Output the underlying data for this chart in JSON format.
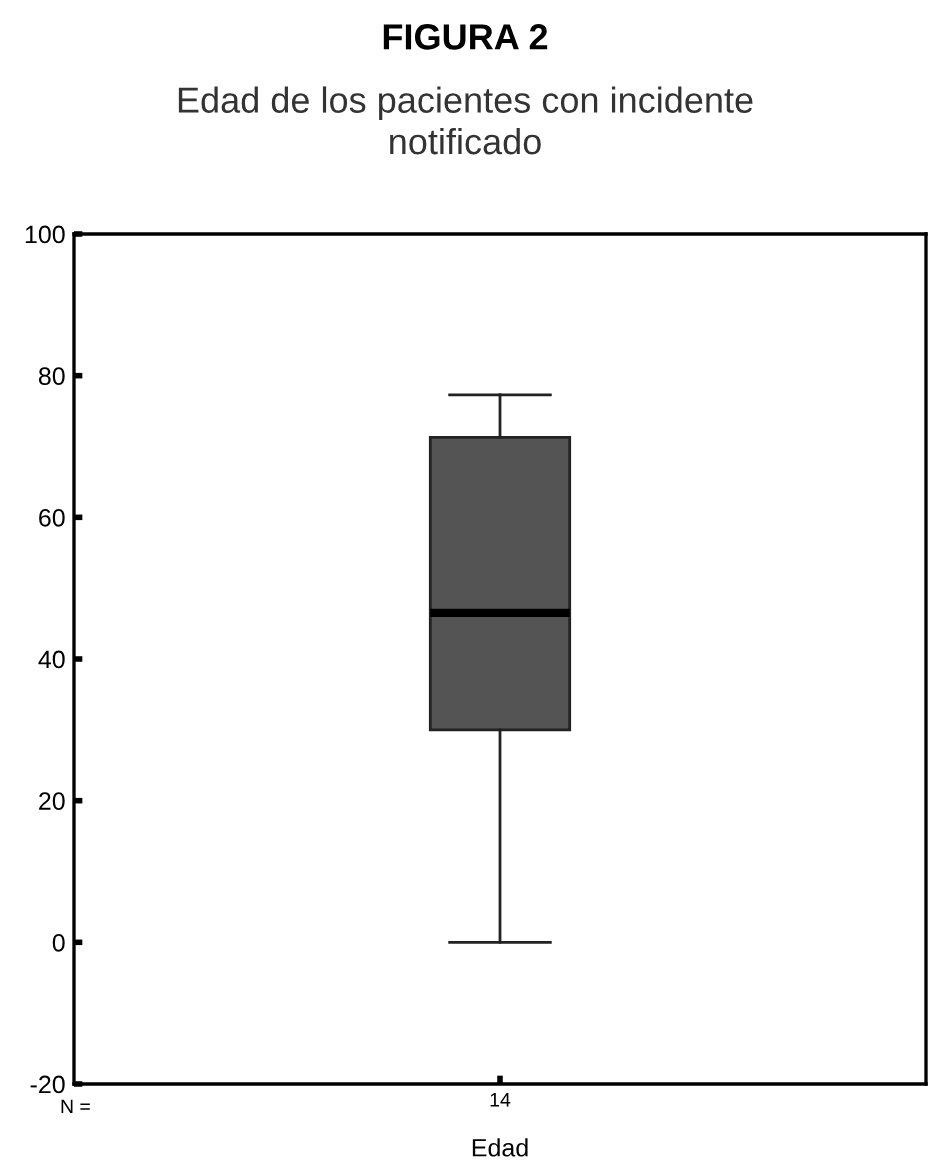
{
  "chart_data": {
    "type": "box",
    "title": "FIGURA 2",
    "subtitle": "Edad de los pacientes con incidente\nnotificado",
    "xlabel": "Edad",
    "categories": [
      "14"
    ],
    "boxes": [
      {
        "low": 0,
        "q1": 30,
        "median": 46.5,
        "q3": 71.3,
        "high": 77.3
      }
    ],
    "color": "#545454",
    "ylim": [
      -20,
      100
    ],
    "yticks": [
      -20,
      0,
      20,
      40,
      60,
      80,
      100
    ],
    "grid": false,
    "annotations": [
      "N ="
    ]
  }
}
